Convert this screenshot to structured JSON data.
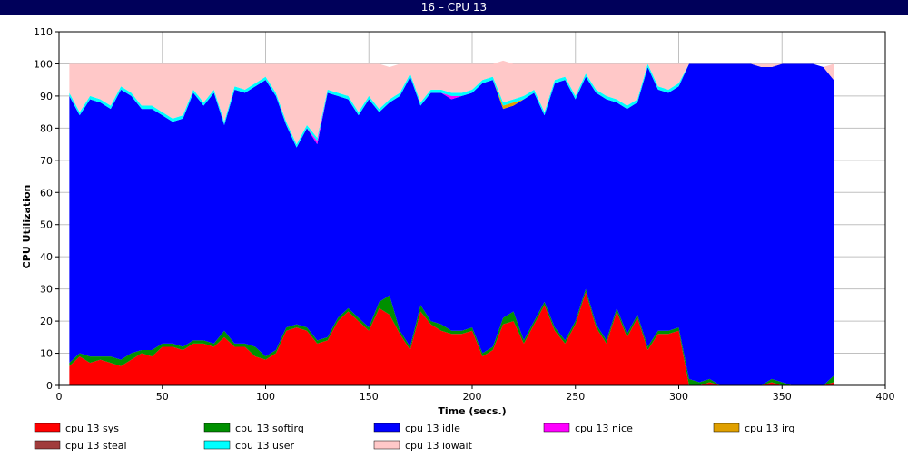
{
  "window": {
    "title": "16 – CPU 13"
  },
  "chart_data": {
    "type": "area",
    "stacked": true,
    "xlabel": "Time (secs.)",
    "ylabel": "CPU Utilization",
    "xlim": [
      0,
      400
    ],
    "ylim": [
      0,
      110
    ],
    "x_ticks": [
      0,
      50,
      100,
      150,
      200,
      250,
      300,
      350,
      400
    ],
    "y_ticks": [
      0,
      10,
      20,
      30,
      40,
      50,
      60,
      70,
      80,
      90,
      100,
      110
    ],
    "grid": true,
    "legend_position": "bottom",
    "x": [
      5,
      10,
      15,
      20,
      25,
      30,
      35,
      40,
      45,
      50,
      55,
      60,
      65,
      70,
      75,
      80,
      85,
      90,
      95,
      100,
      105,
      110,
      115,
      120,
      125,
      130,
      135,
      140,
      145,
      150,
      155,
      160,
      165,
      170,
      175,
      180,
      185,
      190,
      195,
      200,
      205,
      210,
      215,
      220,
      225,
      230,
      235,
      240,
      245,
      250,
      255,
      260,
      265,
      270,
      275,
      280,
      285,
      290,
      295,
      300,
      305,
      310,
      315,
      320,
      325,
      330,
      335,
      340,
      345,
      350,
      355,
      360,
      365,
      370,
      375
    ],
    "series": [
      {
        "name": "cpu 13 sys",
        "color": "#ff0000",
        "values": [
          6,
          9,
          7,
          8,
          7,
          6,
          8,
          10,
          9,
          12,
          12,
          11,
          13,
          13,
          12,
          15,
          12,
          12,
          9,
          8,
          10,
          17,
          18,
          17,
          13,
          14,
          20,
          23,
          20,
          17,
          24,
          22,
          16,
          11,
          23,
          19,
          17,
          16,
          16,
          17,
          9,
          11,
          19,
          20,
          13,
          19,
          25,
          17,
          13,
          19,
          29,
          18,
          13,
          23,
          15,
          21,
          11,
          16,
          16,
          17,
          0,
          0,
          1,
          0,
          0,
          0,
          0,
          0,
          1,
          0,
          0,
          0,
          0,
          0,
          1
        ]
      },
      {
        "name": "cpu 13 softirq",
        "color": "#009000",
        "values": [
          1,
          1,
          2,
          1,
          2,
          2,
          2,
          1,
          2,
          1,
          1,
          1,
          1,
          1,
          1,
          2,
          1,
          1,
          3,
          1,
          1,
          1,
          1,
          1,
          1,
          1,
          1,
          1,
          1,
          1,
          2,
          6,
          1,
          1,
          2,
          1,
          2,
          1,
          1,
          1,
          1,
          1,
          2,
          3,
          1,
          1,
          1,
          1,
          1,
          1,
          1,
          1,
          1,
          1,
          1,
          1,
          1,
          1,
          1,
          1,
          2,
          1,
          1,
          0,
          0,
          0,
          0,
          0,
          1,
          1,
          0,
          0,
          0,
          0,
          2
        ]
      },
      {
        "name": "cpu 13 idle",
        "color": "#0000ff",
        "values": [
          83,
          74,
          80,
          79,
          77,
          84,
          80,
          75,
          75,
          71,
          69,
          71,
          77,
          73,
          78,
          64,
          79,
          78,
          81,
          86,
          79,
          63,
          55,
          62,
          61,
          76,
          69,
          65,
          63,
          71,
          59,
          60,
          73,
          84,
          62,
          71,
          72,
          72,
          73,
          73,
          84,
          83,
          65,
          64,
          75,
          71,
          58,
          76,
          81,
          69,
          66,
          72,
          75,
          64,
          70,
          66,
          87,
          75,
          74,
          75,
          98,
          99,
          98,
          100,
          100,
          100,
          100,
          99,
          97,
          99,
          100,
          100,
          100,
          99,
          92
        ]
      },
      {
        "name": "cpu 13 nice",
        "color": "#ff00ff",
        "values": [
          0,
          0,
          0,
          0,
          0,
          0,
          0,
          0,
          0,
          0,
          0,
          0,
          0,
          0,
          0,
          0,
          0,
          0,
          0,
          0,
          0,
          0,
          0,
          0,
          1,
          0,
          0,
          0,
          0,
          0,
          0,
          0,
          0,
          0,
          0,
          0,
          0,
          1,
          0,
          0,
          0,
          0,
          0,
          0,
          0,
          0,
          0,
          0,
          0,
          0,
          0,
          0,
          0,
          0,
          0,
          0,
          0,
          0,
          0,
          0,
          0,
          0,
          0,
          0,
          0,
          0,
          0,
          0,
          0,
          0,
          0,
          0,
          0,
          0,
          0
        ]
      },
      {
        "name": "cpu 13 irq",
        "color": "#e0a000",
        "values": [
          0,
          0,
          0,
          0,
          0,
          0,
          0,
          0,
          0,
          0,
          0,
          0,
          0,
          0,
          0,
          0,
          0,
          0,
          0,
          0,
          0,
          0,
          0,
          0,
          0,
          0,
          0,
          0,
          0,
          0,
          0,
          0,
          0,
          0,
          0,
          0,
          0,
          0,
          0,
          0,
          0,
          0,
          1,
          1,
          0,
          0,
          0,
          0,
          0,
          0,
          0,
          0,
          0,
          0,
          0,
          0,
          0,
          0,
          0,
          0,
          0,
          0,
          0,
          0,
          0,
          0,
          0,
          0,
          0,
          0,
          0,
          0,
          0,
          0,
          0
        ]
      },
      {
        "name": "cpu 13 steal",
        "color": "#a03c3c",
        "values": [
          0,
          0,
          0,
          0,
          0,
          0,
          0,
          0,
          0,
          0,
          0,
          0,
          0,
          0,
          0,
          0,
          0,
          0,
          0,
          0,
          0,
          0,
          0,
          0,
          0,
          0,
          0,
          0,
          0,
          0,
          0,
          0,
          0,
          0,
          0,
          0,
          0,
          0,
          0,
          0,
          0,
          0,
          0,
          0,
          0,
          0,
          0,
          0,
          0,
          0,
          0,
          0,
          0,
          0,
          0,
          0,
          0,
          0,
          0,
          0,
          0,
          0,
          0,
          0,
          0,
          0,
          0,
          0,
          0,
          0,
          0,
          0,
          0,
          0,
          0
        ]
      },
      {
        "name": "cpu 13 user",
        "color": "#00ffff",
        "values": [
          1,
          1,
          1,
          1,
          1,
          1,
          1,
          1,
          1,
          1,
          1,
          1,
          1,
          1,
          1,
          1,
          1,
          1,
          1,
          1,
          1,
          1,
          1,
          1,
          1,
          1,
          1,
          1,
          1,
          1,
          1,
          1,
          1,
          1,
          1,
          1,
          1,
          1,
          1,
          1,
          1,
          1,
          1,
          1,
          1,
          1,
          1,
          1,
          1,
          1,
          1,
          1,
          1,
          1,
          1,
          1,
          1,
          1,
          1,
          1,
          0,
          0,
          0,
          0,
          0,
          0,
          0,
          0,
          0,
          0,
          0,
          0,
          0,
          0,
          0
        ]
      },
      {
        "name": "cpu 13 iowait",
        "color": "#ffc8c8",
        "values": [
          9,
          15,
          10,
          11,
          13,
          7,
          9,
          13,
          13,
          15,
          17,
          16,
          8,
          12,
          8,
          18,
          7,
          8,
          6,
          4,
          9,
          18,
          25,
          19,
          23,
          8,
          9,
          10,
          15,
          10,
          14,
          10,
          9,
          3,
          12,
          8,
          8,
          9,
          9,
          8,
          5,
          4,
          13,
          11,
          10,
          8,
          15,
          5,
          4,
          10,
          3,
          8,
          10,
          11,
          13,
          11,
          0,
          7,
          8,
          6,
          0,
          0,
          0,
          0,
          0,
          0,
          0,
          1,
          1,
          0,
          0,
          0,
          0,
          0,
          5
        ]
      }
    ]
  }
}
